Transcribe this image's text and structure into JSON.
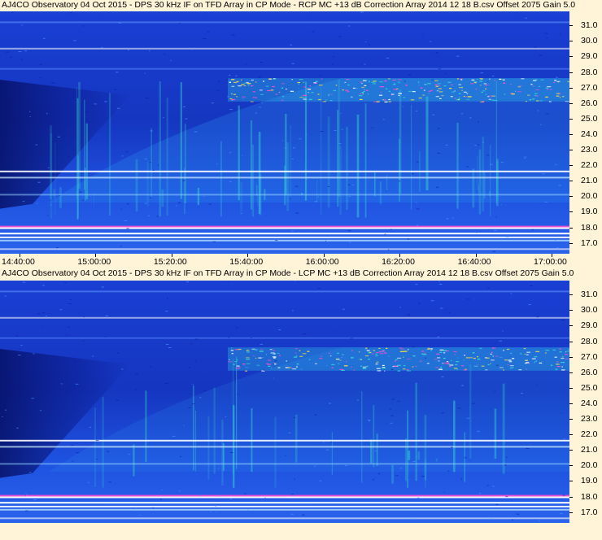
{
  "colors": {
    "background": "#fff3d8",
    "spectrogram_low": "#0a1a8c",
    "spectrogram_mid": "#2a6cf0",
    "spectrogram_high": "#39e0d0",
    "band_hot": "#ff4fd0",
    "band_white": "#ffffff"
  },
  "chart_data": [
    {
      "type": "heatmap",
      "title": "AJ4CO Observatory 04 Oct 2015 - DPS 30 kHz IF on TFD Array in CP Mode - RCP  MC +13 dB  Correction Array 2014 12 18 B.csv  Offset 2075  Gain 5.0",
      "ylabel": "",
      "xlabel": "",
      "ylim": [
        16.3,
        31.9
      ],
      "yticks": [
        "31.0",
        "30.0",
        "29.0",
        "28.0",
        "27.0",
        "26.0",
        "25.0",
        "24.0",
        "23.0",
        "22.0",
        "21.0",
        "20.0",
        "19.0",
        "18.0",
        "17.0"
      ],
      "xtick_labels": [
        "14:40:00",
        "15:00:00",
        "15:20:00",
        "15:40:00",
        "16:00:00",
        "16:20:00",
        "16:40:00",
        "17:00:00"
      ],
      "xlim": [
        "14:40:00",
        "17:00:00"
      ]
    },
    {
      "type": "heatmap",
      "title": "AJ4CO Observatory 04 Oct 2015 - DPS 30 kHz IF on TFD Array in CP Mode - LCP  MC +13 dB  Correction Array 2014 12 18 B.csv  Offset 2075  Gain 5.0",
      "ylabel": "",
      "xlabel": "",
      "ylim": [
        16.3,
        31.9
      ],
      "yticks": [
        "31.0",
        "30.0",
        "29.0",
        "28.0",
        "27.0",
        "26.0",
        "25.0",
        "24.0",
        "23.0",
        "22.0",
        "21.0",
        "20.0",
        "19.0",
        "18.0",
        "17.0"
      ],
      "xtick_labels": [],
      "xlim": [
        "14:40:00",
        "17:00:00"
      ]
    }
  ]
}
